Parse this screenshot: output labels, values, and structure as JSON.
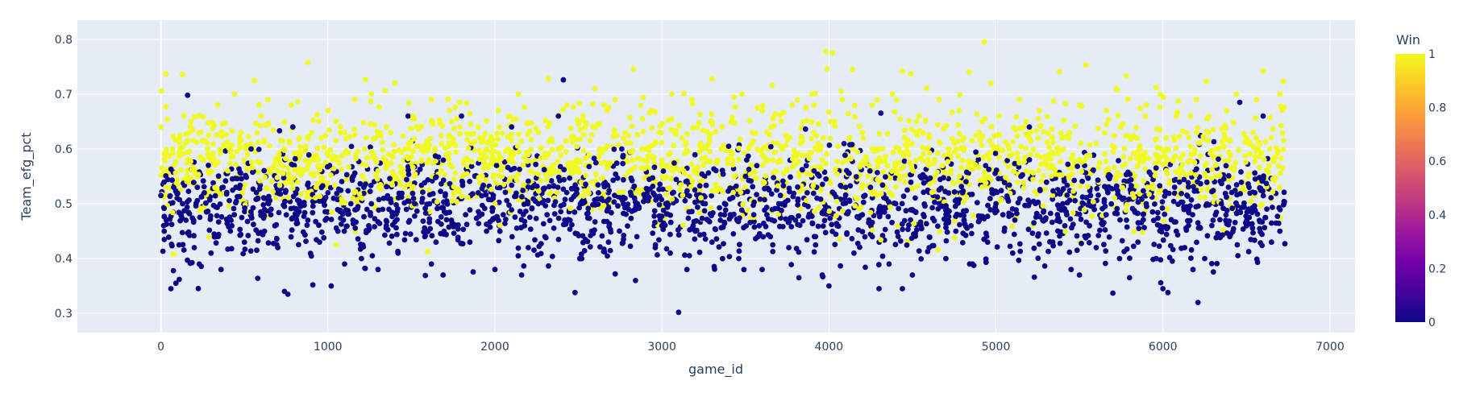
{
  "chart_data": {
    "type": "scatter",
    "title": "",
    "xlabel": "game_id",
    "ylabel": "Team_efg_pct",
    "xlim": [
      -500,
      7150
    ],
    "ylim": [
      0.265,
      0.835
    ],
    "x_ticks": [
      0,
      1000,
      2000,
      3000,
      4000,
      5000,
      6000,
      7000
    ],
    "x_tick_labels": [
      "0",
      "1000",
      "2000",
      "3000",
      "4000",
      "5000",
      "6000",
      "7000"
    ],
    "y_ticks": [
      0.3,
      0.4,
      0.5,
      0.6,
      0.7,
      0.8
    ],
    "y_tick_labels": [
      "0.3",
      "0.4",
      "0.5",
      "0.6",
      "0.7",
      "0.8"
    ],
    "grid": true,
    "color_variable": "Win",
    "colorbar": {
      "title": "Win",
      "range": [
        0,
        1
      ],
      "ticks": [
        0,
        0.2,
        0.4,
        0.6,
        0.8,
        1
      ],
      "tick_labels": [
        "0",
        "0.2",
        "0.4",
        "0.6",
        "0.8",
        "1"
      ],
      "colorscale": [
        "#0d0887",
        "#46039f",
        "#7201a8",
        "#9c179e",
        "#bd3786",
        "#d8576b",
        "#ed7953",
        "#fb9f3a",
        "#fdca26",
        "#f0f921"
      ]
    },
    "point_colors": {
      "win_0": "#0d0887",
      "win_1": "#f0f921"
    },
    "plot_bg": "#e5ecf6",
    "grid_color": "#ffffff",
    "series": [
      {
        "win": 0,
        "points": [
          [
            0,
            0.515
          ],
          [
            20,
            0.45
          ],
          [
            60,
            0.345
          ],
          [
            75,
            0.378
          ],
          [
            90,
            0.355
          ],
          [
            110,
            0.362
          ],
          [
            130,
            0.5
          ],
          [
            150,
            0.47
          ],
          [
            160,
            0.698
          ],
          [
            200,
            0.42
          ],
          [
            230,
            0.39
          ],
          [
            260,
            0.52
          ],
          [
            300,
            0.41
          ],
          [
            330,
            0.44
          ],
          [
            360,
            0.38
          ],
          [
            420,
            0.47
          ],
          [
            450,
            0.53
          ],
          [
            500,
            0.43
          ],
          [
            540,
            0.6
          ],
          [
            580,
            0.364
          ],
          [
            620,
            0.45
          ],
          [
            660,
            0.49
          ],
          [
            700,
            0.42
          ],
          [
            740,
            0.34
          ],
          [
            760,
            0.335
          ],
          [
            790,
            0.64
          ],
          [
            830,
            0.5
          ],
          [
            880,
            0.47
          ],
          [
            910,
            0.352
          ],
          [
            950,
            0.43
          ],
          [
            1000,
            0.52
          ],
          [
            1020,
            0.35
          ],
          [
            1060,
            0.45
          ],
          [
            1100,
            0.39
          ],
          [
            1150,
            0.47
          ],
          [
            1200,
            0.42
          ],
          [
            1260,
            0.5
          ],
          [
            1300,
            0.38
          ],
          [
            1350,
            0.46
          ],
          [
            1420,
            0.41
          ],
          [
            1480,
            0.66
          ],
          [
            1520,
            0.5
          ],
          [
            1580,
            0.44
          ],
          [
            1620,
            0.39
          ],
          [
            1690,
            0.37
          ],
          [
            1740,
            0.47
          ],
          [
            1800,
            0.66
          ],
          [
            1850,
            0.43
          ],
          [
            1900,
            0.52
          ],
          [
            1950,
            0.45
          ],
          [
            2000,
            0.38
          ],
          [
            2050,
            0.48
          ],
          [
            2100,
            0.64
          ],
          [
            2160,
            0.37
          ],
          [
            2200,
            0.42
          ],
          [
            2260,
            0.5
          ],
          [
            2300,
            0.44
          ],
          [
            2380,
            0.66
          ],
          [
            2410,
            0.726
          ],
          [
            2450,
            0.47
          ],
          [
            2480,
            0.338
          ],
          [
            2520,
            0.4
          ],
          [
            2580,
            0.45
          ],
          [
            2620,
            0.52
          ],
          [
            2680,
            0.43
          ],
          [
            2720,
            0.372
          ],
          [
            2760,
            0.6
          ],
          [
            2800,
            0.49
          ],
          [
            2850,
            0.44
          ],
          [
            2900,
            0.51
          ],
          [
            2960,
            0.42
          ],
          [
            3000,
            0.46
          ],
          [
            3050,
            0.41
          ],
          [
            3100,
            0.302
          ],
          [
            3150,
            0.38
          ],
          [
            3200,
            0.45
          ],
          [
            3260,
            0.5
          ],
          [
            3300,
            0.43
          ],
          [
            3350,
            0.47
          ],
          [
            3400,
            0.605
          ],
          [
            3460,
            0.4
          ],
          [
            3500,
            0.55
          ],
          [
            3550,
            0.48
          ],
          [
            3600,
            0.38
          ],
          [
            3650,
            0.44
          ],
          [
            3700,
            0.5
          ],
          [
            3760,
            0.42
          ],
          [
            3800,
            0.47
          ],
          [
            3820,
            0.365
          ],
          [
            3870,
            0.52
          ],
          [
            3920,
            0.44
          ],
          [
            3960,
            0.37
          ],
          [
            4000,
            0.35
          ],
          [
            4050,
            0.46
          ],
          [
            4100,
            0.53
          ],
          [
            4150,
            0.41
          ],
          [
            4200,
            0.48
          ],
          [
            4260,
            0.44
          ],
          [
            4300,
            0.345
          ],
          [
            4360,
            0.39
          ],
          [
            4400,
            0.5
          ],
          [
            4440,
            0.345
          ],
          [
            4500,
            0.37
          ],
          [
            4550,
            0.46
          ],
          [
            4600,
            0.42
          ],
          [
            4660,
            0.5
          ],
          [
            4700,
            0.4
          ],
          [
            4760,
            0.45
          ],
          [
            4800,
            0.52
          ],
          [
            4860,
            0.39
          ],
          [
            4900,
            0.47
          ],
          [
            4950,
            0.43
          ],
          [
            5000,
            0.5
          ],
          [
            5050,
            0.45
          ],
          [
            5100,
            0.41
          ],
          [
            5150,
            0.55
          ],
          [
            5200,
            0.64
          ],
          [
            5230,
            0.366
          ],
          [
            5280,
            0.47
          ],
          [
            5340,
            0.43
          ],
          [
            5400,
            0.5
          ],
          [
            5450,
            0.38
          ],
          [
            5500,
            0.37
          ],
          [
            5560,
            0.46
          ],
          [
            5600,
            0.42
          ],
          [
            5660,
            0.48
          ],
          [
            5700,
            0.337
          ],
          [
            5740,
            0.4
          ],
          [
            5800,
            0.365
          ],
          [
            5850,
            0.43
          ],
          [
            5900,
            0.5
          ],
          [
            5960,
            0.4
          ],
          [
            6000,
            0.345
          ],
          [
            6030,
            0.338
          ],
          [
            6080,
            0.45
          ],
          [
            6130,
            0.42
          ],
          [
            6180,
            0.38
          ],
          [
            6210,
            0.32
          ],
          [
            6250,
            0.4
          ],
          [
            6300,
            0.47
          ],
          [
            6350,
            0.5
          ],
          [
            6400,
            0.44
          ],
          [
            6460,
            0.685
          ],
          [
            6500,
            0.46
          ],
          [
            6550,
            0.52
          ],
          [
            6600,
            0.66
          ],
          [
            6650,
            0.43
          ],
          [
            6700,
            0.45
          ],
          [
            6730,
            0.427
          ]
        ]
      },
      {
        "win": 1,
        "points": [
          [
            0,
            0.64
          ],
          [
            30,
            0.737
          ],
          [
            70,
            0.6
          ],
          [
            130,
            0.736
          ],
          [
            180,
            0.65
          ],
          [
            220,
            0.55
          ],
          [
            280,
            0.6
          ],
          [
            340,
            0.68
          ],
          [
            400,
            0.56
          ],
          [
            440,
            0.7
          ],
          [
            480,
            0.63
          ],
          [
            520,
            0.59
          ],
          [
            560,
            0.725
          ],
          [
            600,
            0.66
          ],
          [
            640,
            0.69
          ],
          [
            700,
            0.56
          ],
          [
            740,
            0.6
          ],
          [
            780,
            0.68
          ],
          [
            830,
            0.62
          ],
          [
            880,
            0.758
          ],
          [
            920,
            0.58
          ],
          [
            960,
            0.62
          ],
          [
            1000,
            0.67
          ],
          [
            1050,
            0.58
          ],
          [
            1100,
            0.63
          ],
          [
            1160,
            0.69
          ],
          [
            1220,
            0.6
          ],
          [
            1260,
            0.7
          ],
          [
            1300,
            0.56
          ],
          [
            1350,
            0.64
          ],
          [
            1400,
            0.72
          ],
          [
            1460,
            0.6
          ],
          [
            1510,
            0.66
          ],
          [
            1560,
            0.58
          ],
          [
            1620,
            0.69
          ],
          [
            1680,
            0.61
          ],
          [
            1740,
            0.65
          ],
          [
            1790,
            0.685
          ],
          [
            1840,
            0.58
          ],
          [
            1900,
            0.64
          ],
          [
            1960,
            0.57
          ],
          [
            2020,
            0.67
          ],
          [
            2080,
            0.6
          ],
          [
            2140,
            0.7
          ],
          [
            2200,
            0.59
          ],
          [
            2260,
            0.63
          ],
          [
            2320,
            0.728
          ],
          [
            2380,
            0.6
          ],
          [
            2430,
            0.68
          ],
          [
            2490,
            0.58
          ],
          [
            2540,
            0.64
          ],
          [
            2600,
            0.71
          ],
          [
            2660,
            0.6
          ],
          [
            2720,
            0.69
          ],
          [
            2780,
            0.63
          ],
          [
            2830,
            0.746
          ],
          [
            2880,
            0.6
          ],
          [
            2940,
            0.67
          ],
          [
            3000,
            0.58
          ],
          [
            3060,
            0.7
          ],
          [
            3120,
            0.62
          ],
          [
            3180,
            0.69
          ],
          [
            3240,
            0.6
          ],
          [
            3300,
            0.728
          ],
          [
            3360,
            0.64
          ],
          [
            3420,
            0.59
          ],
          [
            3480,
            0.7
          ],
          [
            3540,
            0.63
          ],
          [
            3600,
            0.67
          ],
          [
            3660,
            0.716
          ],
          [
            3720,
            0.6
          ],
          [
            3780,
            0.68
          ],
          [
            3840,
            0.62
          ],
          [
            3900,
            0.7
          ],
          [
            3960,
            0.58
          ],
          [
            3980,
            0.778
          ],
          [
            4020,
            0.775
          ],
          [
            4080,
            0.69
          ],
          [
            4140,
            0.745
          ],
          [
            4200,
            0.63
          ],
          [
            4260,
            0.68
          ],
          [
            4320,
            0.6
          ],
          [
            4380,
            0.7
          ],
          [
            4440,
            0.742
          ],
          [
            4490,
            0.737
          ],
          [
            4540,
            0.66
          ],
          [
            4600,
            0.62
          ],
          [
            4660,
            0.69
          ],
          [
            4720,
            0.6
          ],
          [
            4780,
            0.67
          ],
          [
            4840,
            0.74
          ],
          [
            4900,
            0.63
          ],
          [
            4930,
            0.795
          ],
          [
            4970,
            0.72
          ],
          [
            5020,
            0.66
          ],
          [
            5080,
            0.6
          ],
          [
            5140,
            0.69
          ],
          [
            5200,
            0.62
          ],
          [
            5260,
            0.67
          ],
          [
            5320,
            0.59
          ],
          [
            5380,
            0.741
          ],
          [
            5440,
            0.63
          ],
          [
            5500,
            0.68
          ],
          [
            5540,
            0.753
          ],
          [
            5600,
            0.61
          ],
          [
            5660,
            0.67
          ],
          [
            5720,
            0.71
          ],
          [
            5780,
            0.733
          ],
          [
            5840,
            0.62
          ],
          [
            5900,
            0.68
          ],
          [
            5960,
            0.712
          ],
          [
            6020,
            0.6
          ],
          [
            6080,
            0.66
          ],
          [
            6140,
            0.63
          ],
          [
            6200,
            0.69
          ],
          [
            6260,
            0.723
          ],
          [
            6320,
            0.6
          ],
          [
            6380,
            0.67
          ],
          [
            6440,
            0.7
          ],
          [
            6500,
            0.62
          ],
          [
            6560,
            0.69
          ],
          [
            6600,
            0.742
          ],
          [
            6640,
            0.6
          ],
          [
            6700,
            0.7
          ],
          [
            6720,
            0.723
          ]
        ]
      }
    ],
    "dense_band": {
      "x_range": [
        0,
        6730
      ],
      "win_0_y_range": [
        0.4,
        0.6
      ],
      "win_1_y_range": [
        0.45,
        0.7
      ]
    }
  }
}
